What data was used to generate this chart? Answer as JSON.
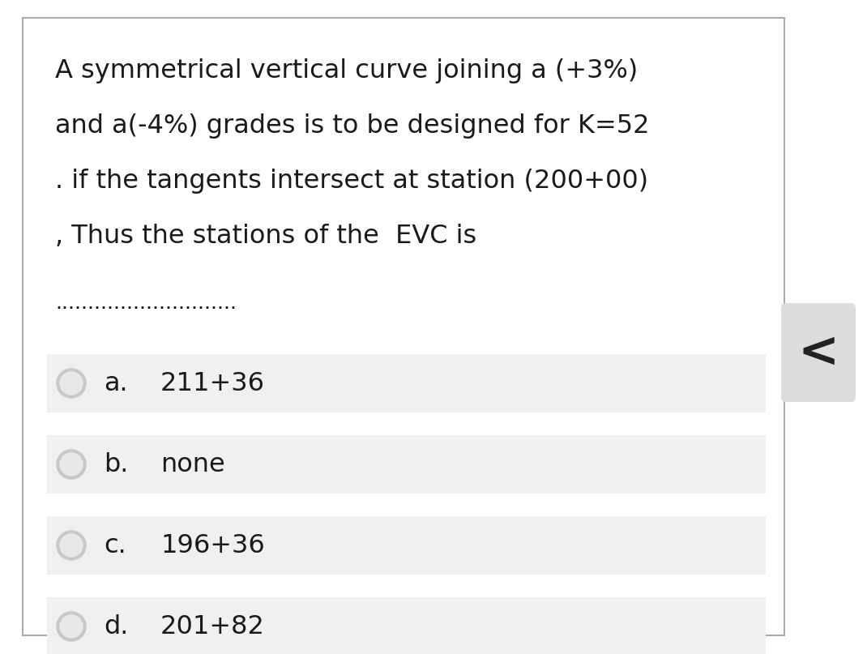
{
  "bg_color": "#ffffff",
  "border_color": "#aaaaaa",
  "question_lines": [
    "A symmetrical vertical curve joining a (+3%)",
    "and a(-4%) grades is to be designed for K=52",
    ". if the tangents intersect at station (200+00)",
    ", Thus the stations of the  EVC is"
  ],
  "dots_line": "............................",
  "options": [
    {
      "label": "a.",
      "text": "211+36"
    },
    {
      "label": "b.",
      "text": "none"
    },
    {
      "label": "c.",
      "text": "196+36"
    },
    {
      "label": "d.",
      "text": "201+82"
    }
  ],
  "option_bg": "#f0f0f0",
  "radio_outer_color": "#c8c8c8",
  "radio_inner_color": "#e8e8e8",
  "text_color": "#1a1a1a",
  "question_fontsize": 23,
  "option_fontsize": 23,
  "dots_fontsize": 18,
  "chevron_text": "<",
  "chevron_fontsize": 44,
  "chevron_color": "#222222",
  "chevron_bg": "#dddddd",
  "font_family": "DejaVu Sans"
}
